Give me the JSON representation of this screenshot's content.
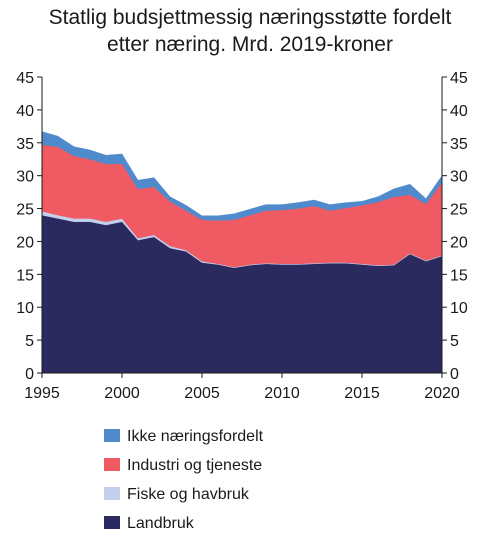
{
  "chart_data": {
    "type": "area",
    "stacked": true,
    "title_lines": [
      "Statlig budsjettmessig næringsstøtte fordelt",
      "etter næring. Mrd. 2019-kroner"
    ],
    "xlabel": "",
    "ylabel": "",
    "xlim": [
      1995,
      2020
    ],
    "ylim": [
      0,
      45
    ],
    "x_ticks": [
      1995,
      2000,
      2005,
      2010,
      2015,
      2020
    ],
    "y_ticks": [
      0,
      5,
      10,
      15,
      20,
      25,
      30,
      35,
      40,
      45
    ],
    "grid": false,
    "legend_position": "bottom",
    "x": [
      1995,
      1996,
      1997,
      1998,
      1999,
      2000,
      2001,
      2002,
      2003,
      2004,
      2005,
      2006,
      2007,
      2008,
      2009,
      2010,
      2011,
      2012,
      2013,
      2014,
      2015,
      2016,
      2017,
      2018,
      2019,
      2020
    ],
    "series": [
      {
        "name": "Landbruk",
        "color": "#2a2a5e",
        "values": [
          24.0,
          23.5,
          23.0,
          23.0,
          22.5,
          23.0,
          20.2,
          20.7,
          19.0,
          18.5,
          16.8,
          16.5,
          16.0,
          16.4,
          16.6,
          16.5,
          16.5,
          16.6,
          16.7,
          16.7,
          16.5,
          16.3,
          16.4,
          18.1,
          17.0,
          17.8
        ]
      },
      {
        "name": "Fiske og havbruk",
        "color": "#c2d0ee",
        "values": [
          0.6,
          0.5,
          0.5,
          0.5,
          0.5,
          0.5,
          0.3,
          0.3,
          0.3,
          0.2,
          0.2,
          0.1,
          0.1,
          0.1,
          0.1,
          0.1,
          0.1,
          0.1,
          0.1,
          0.1,
          0.1,
          0.1,
          0.1,
          0.1,
          0.1,
          0.1
        ]
      },
      {
        "name": "Industri og tjeneste",
        "color": "#ef5a63",
        "values": [
          10.1,
          10.4,
          9.5,
          9.0,
          8.8,
          8.3,
          7.5,
          7.3,
          6.8,
          6.0,
          6.3,
          6.6,
          7.2,
          7.5,
          8.0,
          8.2,
          8.4,
          8.7,
          7.9,
          8.3,
          8.9,
          9.6,
          10.3,
          8.9,
          8.6,
          11.1
        ]
      },
      {
        "name": "Ikke næringsfordelt",
        "color": "#4f8bcc",
        "values": [
          2.0,
          1.6,
          1.4,
          1.4,
          1.3,
          1.5,
          1.3,
          1.4,
          0.7,
          0.8,
          0.6,
          0.7,
          0.9,
          0.9,
          0.9,
          0.8,
          0.9,
          0.9,
          0.9,
          0.8,
          0.6,
          0.8,
          1.2,
          1.6,
          0.8,
          1.0
        ]
      }
    ],
    "legend_order": [
      "Ikke næringsfordelt",
      "Industri og tjeneste",
      "Fiske og havbruk",
      "Landbruk"
    ]
  }
}
